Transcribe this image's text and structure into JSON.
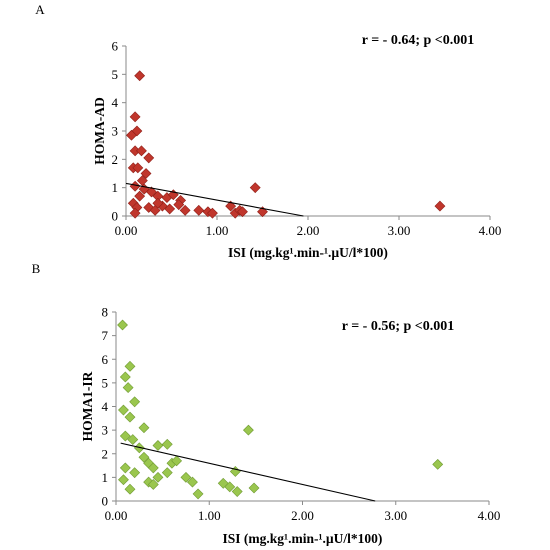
{
  "chart_data": [
    {
      "type": "scatter",
      "panel_label": "A",
      "annotation": "r = - 0.64; p <0.001",
      "xlabel": "ISI (mg.kg¹.min-¹.µU/l*100)",
      "ylabel": "HOMA-AD",
      "xlim": [
        0,
        4
      ],
      "ylim": [
        0,
        6
      ],
      "x_ticks": [
        "0.00",
        "1.00",
        "2.00",
        "3.00",
        "4.00"
      ],
      "y_ticks": [
        "0",
        "1",
        "2",
        "3",
        "4",
        "5",
        "6"
      ],
      "marker_color": "#c0362c",
      "marker_edge": "#8f1f18",
      "trendline": {
        "x": [
          0,
          1.95
        ],
        "y": [
          1.15,
          0
        ]
      },
      "points": [
        [
          0.15,
          4.95
        ],
        [
          0.1,
          3.5
        ],
        [
          0.12,
          3.0
        ],
        [
          0.06,
          2.85
        ],
        [
          0.1,
          2.3
        ],
        [
          0.17,
          2.3
        ],
        [
          0.25,
          2.05
        ],
        [
          0.08,
          1.7
        ],
        [
          0.13,
          1.7
        ],
        [
          0.22,
          1.5
        ],
        [
          0.18,
          1.25
        ],
        [
          0.1,
          1.05
        ],
        [
          0.2,
          0.95
        ],
        [
          0.28,
          0.85
        ],
        [
          0.15,
          0.7
        ],
        [
          0.35,
          0.7
        ],
        [
          0.45,
          0.65
        ],
        [
          0.52,
          0.75
        ],
        [
          0.6,
          0.55
        ],
        [
          0.58,
          0.4
        ],
        [
          0.08,
          0.45
        ],
        [
          0.12,
          0.3
        ],
        [
          0.25,
          0.3
        ],
        [
          0.32,
          0.2
        ],
        [
          0.4,
          0.35
        ],
        [
          0.48,
          0.25
        ],
        [
          0.65,
          0.2
        ],
        [
          0.8,
          0.2
        ],
        [
          0.9,
          0.15
        ],
        [
          0.95,
          0.1
        ],
        [
          1.15,
          0.35
        ],
        [
          1.2,
          0.1
        ],
        [
          1.25,
          0.2
        ],
        [
          1.28,
          0.15
        ],
        [
          1.42,
          1.0
        ],
        [
          1.5,
          0.15
        ],
        [
          0.1,
          0.1
        ],
        [
          0.35,
          0.45
        ],
        [
          3.45,
          0.35
        ]
      ]
    },
    {
      "type": "scatter",
      "panel_label": "B",
      "annotation": "r = - 0.56; p <0.001",
      "xlabel": "ISI (mg.kg¹.min-¹.µU/l*100)",
      "ylabel": "HOMA1-IR",
      "xlim": [
        0,
        4
      ],
      "ylim": [
        0,
        8
      ],
      "x_ticks": [
        "0.00",
        "1.00",
        "2.00",
        "3.00",
        "4.00"
      ],
      "y_ticks": [
        "0",
        "1",
        "2",
        "3",
        "4",
        "5",
        "6",
        "7",
        "8"
      ],
      "marker_color": "#9ac64e",
      "marker_edge": "#6f9a33",
      "trendline": {
        "x": [
          0.05,
          2.78
        ],
        "y": [
          2.45,
          0
        ]
      },
      "points": [
        [
          0.07,
          7.45
        ],
        [
          0.15,
          5.7
        ],
        [
          0.1,
          5.25
        ],
        [
          0.13,
          4.8
        ],
        [
          0.2,
          4.2
        ],
        [
          0.08,
          3.85
        ],
        [
          0.15,
          3.55
        ],
        [
          0.3,
          3.1
        ],
        [
          0.1,
          2.75
        ],
        [
          0.18,
          2.6
        ],
        [
          0.25,
          2.25
        ],
        [
          0.3,
          1.85
        ],
        [
          0.35,
          1.6
        ],
        [
          0.4,
          1.4
        ],
        [
          0.45,
          2.35
        ],
        [
          0.55,
          2.4
        ],
        [
          0.6,
          1.6
        ],
        [
          0.65,
          1.7
        ],
        [
          0.55,
          1.2
        ],
        [
          0.45,
          1.0
        ],
        [
          0.35,
          0.8
        ],
        [
          0.4,
          0.7
        ],
        [
          0.1,
          1.4
        ],
        [
          0.2,
          1.2
        ],
        [
          0.08,
          0.9
        ],
        [
          0.15,
          0.5
        ],
        [
          0.75,
          1.0
        ],
        [
          0.82,
          0.8
        ],
        [
          0.88,
          0.3
        ],
        [
          1.15,
          0.75
        ],
        [
          1.22,
          0.6
        ],
        [
          1.28,
          1.25
        ],
        [
          1.3,
          0.4
        ],
        [
          1.42,
          3.0
        ],
        [
          1.48,
          0.55
        ],
        [
          3.45,
          1.55
        ]
      ]
    }
  ]
}
